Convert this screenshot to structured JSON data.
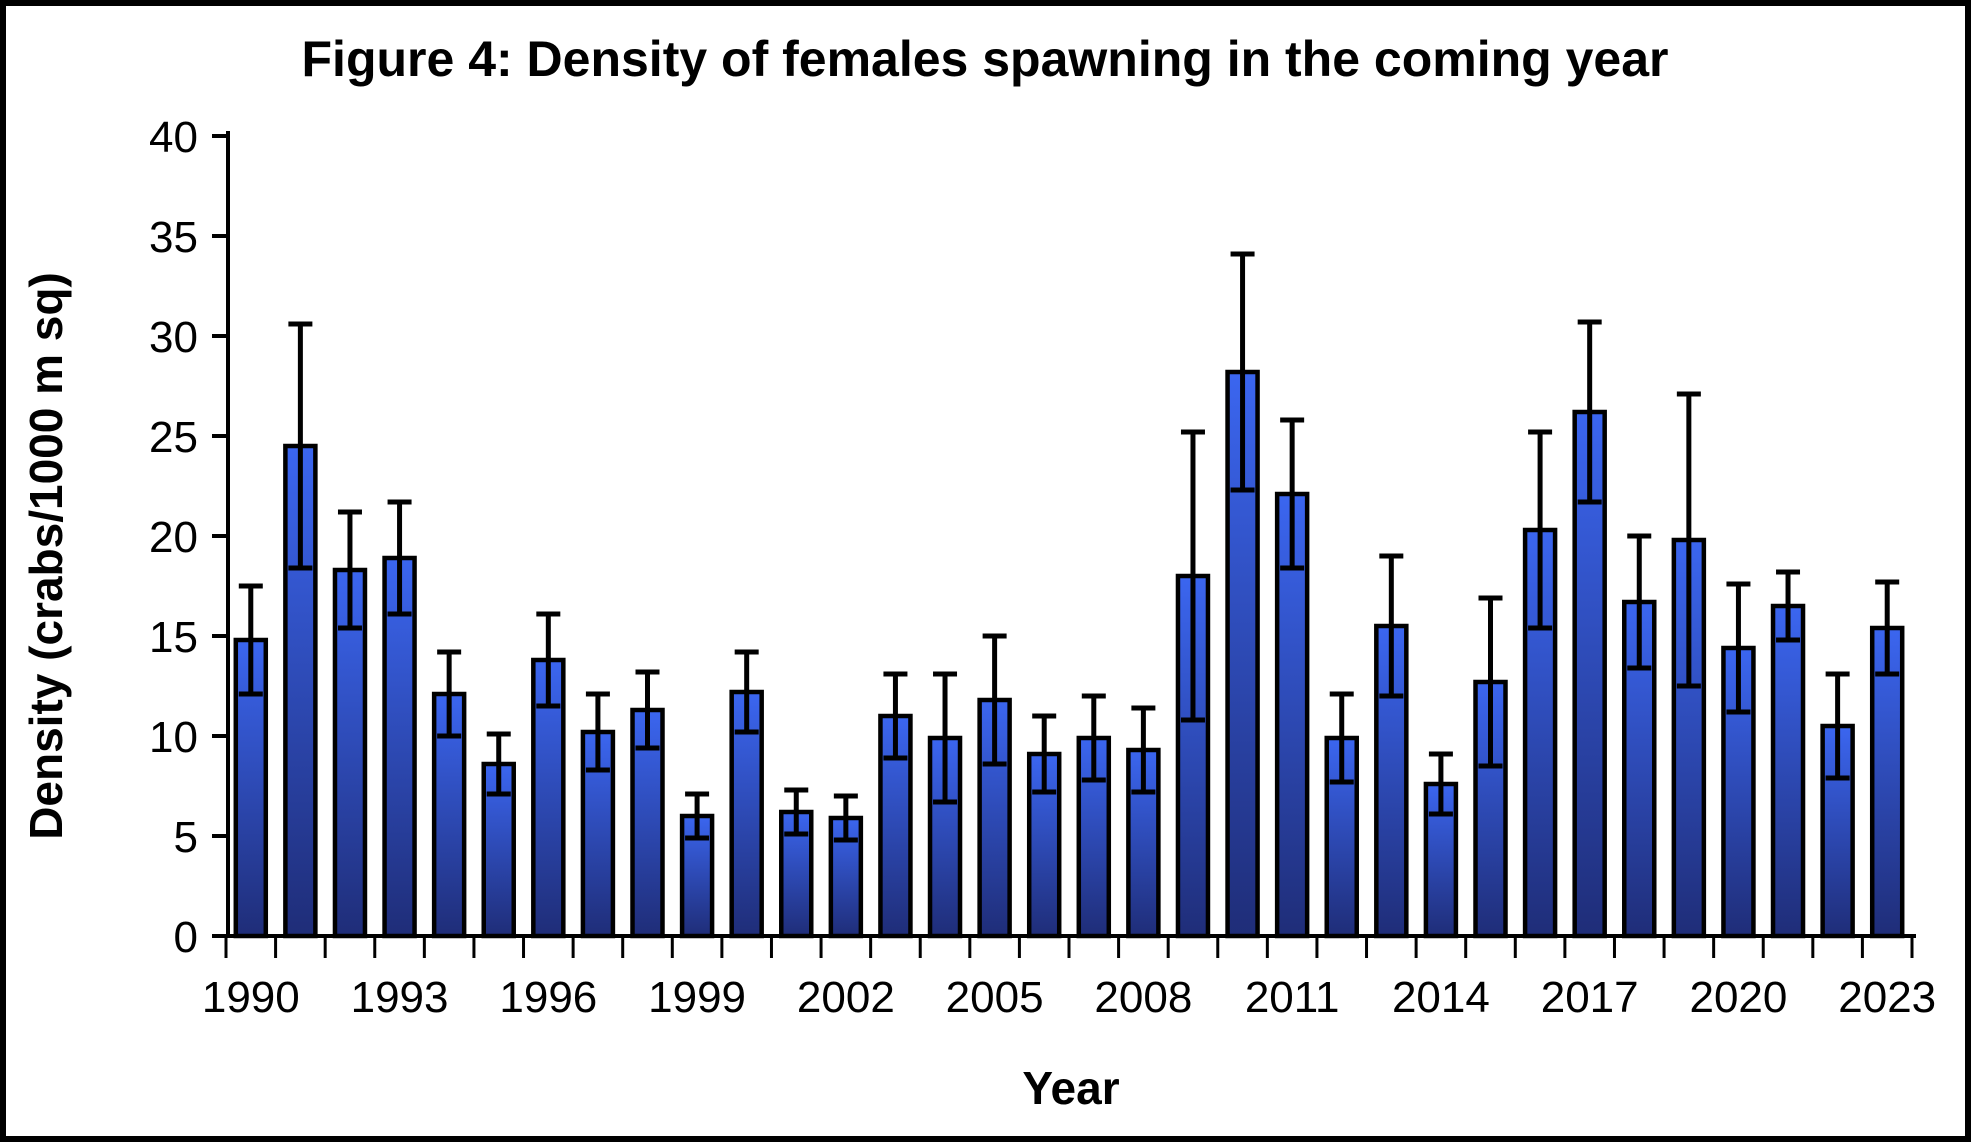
{
  "chart_data": {
    "type": "bar",
    "title": "Figure 4: Density of females spawning in the coming year",
    "xlabel": "Year",
    "ylabel": "Density (crabs/1000 m sq)",
    "ylim": [
      0,
      40
    ],
    "grid": false,
    "legend": null,
    "y_axis": {
      "label": "Density (crabs/1000 m sq)",
      "min": 0,
      "max": 40,
      "tick_step": 5,
      "ticks": [
        0,
        5,
        10,
        15,
        20,
        25,
        30,
        35,
        40
      ]
    },
    "x_axis": {
      "label": "Year",
      "categories": [
        1990,
        1991,
        1992,
        1993,
        1994,
        1995,
        1996,
        1997,
        1998,
        1999,
        2000,
        2001,
        2002,
        2003,
        2004,
        2005,
        2006,
        2007,
        2008,
        2009,
        2010,
        2011,
        2012,
        2013,
        2014,
        2015,
        2016,
        2017,
        2018,
        2019,
        2020,
        2021,
        2022,
        2023
      ],
      "tick_label_years": [
        1990,
        1993,
        1996,
        1999,
        2002,
        2005,
        2008,
        2011,
        2014,
        2017,
        2020,
        2023
      ]
    },
    "values": [
      14.8,
      24.5,
      18.3,
      18.9,
      12.1,
      8.6,
      13.8,
      10.2,
      11.3,
      6.0,
      12.2,
      6.2,
      5.9,
      11.0,
      9.9,
      11.8,
      9.1,
      9.9,
      9.3,
      18.0,
      28.2,
      22.1,
      9.9,
      15.5,
      7.6,
      12.7,
      20.3,
      26.2,
      16.7,
      19.8,
      14.4,
      16.5,
      10.5,
      15.4
    ],
    "errors": [
      2.7,
      6.1,
      2.9,
      2.8,
      2.1,
      1.5,
      2.3,
      1.9,
      1.9,
      1.1,
      2.0,
      1.1,
      1.1,
      2.1,
      3.2,
      3.2,
      1.9,
      2.1,
      2.1,
      7.2,
      5.9,
      3.7,
      2.2,
      3.5,
      1.5,
      4.2,
      4.9,
      4.5,
      3.3,
      7.3,
      3.2,
      1.7,
      2.6,
      2.3
    ],
    "colors": {
      "bar_fill_top": "#3B66F0",
      "bar_fill_bottom": "#1F2D78",
      "bar_stroke": "#000000",
      "error_bar": "#000000",
      "axis": "#000000",
      "background": "#ffffff",
      "outer_border": "#000000"
    }
  }
}
